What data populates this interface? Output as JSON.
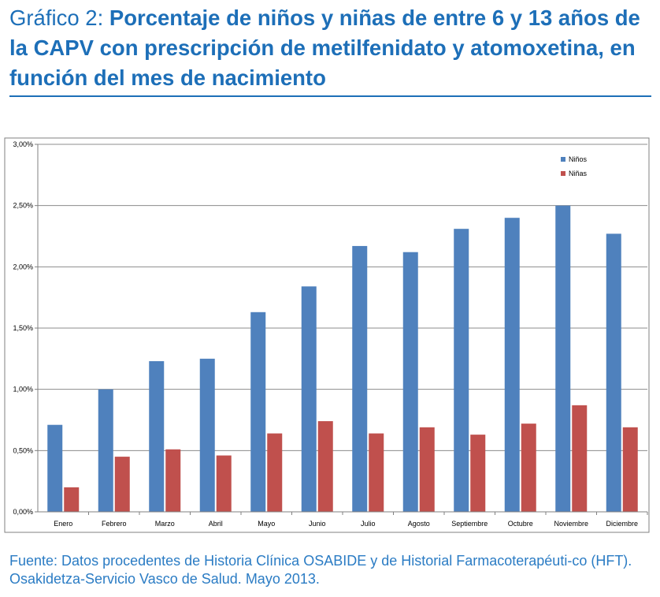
{
  "title": {
    "prefix": "Gráfico 2: ",
    "main": "Porcentaje de niños y niñas de entre 6 y 13 años de la CAPV con prescripción de metilfenidato y atomoxetina, en función del mes de nacimiento"
  },
  "source": "Fuente: Datos procedentes de Historia Clínica OSABIDE y de Historial Farmacoterapéuti-co (HFT). Osakidetza-Servicio Vasco de Salud. Mayo 2013.",
  "colors": {
    "accent": "#1d6fb8",
    "ninos": "#4f81bd",
    "ninas": "#c0504d"
  },
  "chart_data": {
    "type": "bar",
    "categories": [
      "Enero",
      "Febrero",
      "Marzo",
      "Abril",
      "Mayo",
      "Junio",
      "Julio",
      "Agosto",
      "Septiembre",
      "Octubre",
      "Noviembre",
      "Diciembre"
    ],
    "series": [
      {
        "name": "Niños",
        "values": [
          0.71,
          1.0,
          1.23,
          1.25,
          1.63,
          1.84,
          2.17,
          2.12,
          2.31,
          2.4,
          2.5,
          2.27
        ]
      },
      {
        "name": "Niñas",
        "values": [
          0.2,
          0.45,
          0.51,
          0.46,
          0.64,
          0.74,
          0.64,
          0.69,
          0.63,
          0.72,
          0.87,
          0.69
        ]
      }
    ],
    "y_ticks": [
      "0,00%",
      "0,50%",
      "1,00%",
      "1,50%",
      "2,00%",
      "2,50%",
      "3,00%"
    ],
    "ylim": [
      0,
      3
    ],
    "grid": true,
    "legend": "top-right",
    "xlabel": "",
    "ylabel": ""
  }
}
